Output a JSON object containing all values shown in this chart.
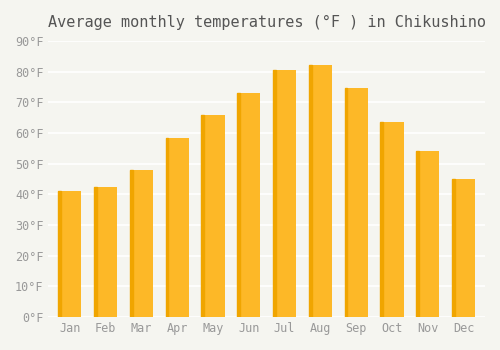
{
  "title": "Average monthly temperatures (°F ) in Chikushino",
  "months": [
    "Jan",
    "Feb",
    "Mar",
    "Apr",
    "May",
    "Jun",
    "Jul",
    "Aug",
    "Sep",
    "Oct",
    "Nov",
    "Dec"
  ],
  "values": [
    41,
    42.5,
    48,
    58.5,
    66,
    73,
    80.5,
    82,
    74.5,
    63.5,
    54,
    45
  ],
  "bar_color_main": "#FDB827",
  "bar_color_left": "#F0A500",
  "ylim": [
    0,
    90
  ],
  "yticks": [
    0,
    10,
    20,
    30,
    40,
    50,
    60,
    70,
    80,
    90
  ],
  "ytick_labels": [
    "0°F",
    "10°F",
    "20°F",
    "30°F",
    "40°F",
    "50°F",
    "60°F",
    "70°F",
    "80°F",
    "90°F"
  ],
  "background_color": "#f5f5f0",
  "grid_color": "#ffffff",
  "title_fontsize": 11,
  "tick_fontsize": 8.5
}
